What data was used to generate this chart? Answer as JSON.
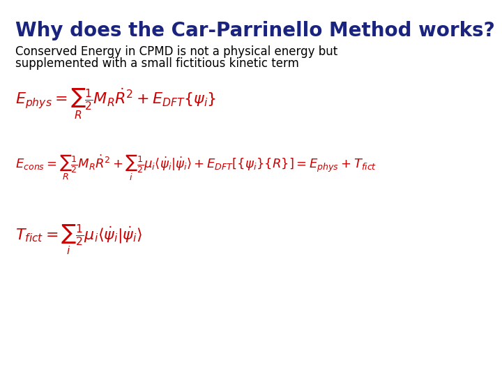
{
  "title": "Why does the Car-Parrinello Method works?",
  "title_color": "#1a237e",
  "title_fontsize": 20,
  "subtitle_line1": "Conserved Energy in CPMD is not a physical energy but",
  "subtitle_line2": "supplemented with a small fictitious kinetic term",
  "subtitle_color": "#000000",
  "subtitle_fontsize": 12,
  "eq_color": "#cc0000",
  "eq1_fontsize": 16,
  "eq2_fontsize": 13,
  "eq3_fontsize": 16,
  "background_color": "#ffffff"
}
